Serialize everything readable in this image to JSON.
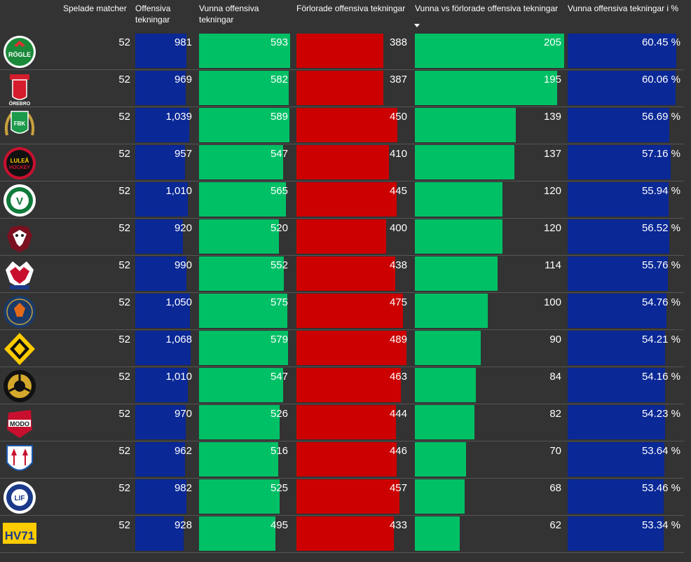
{
  "headers": {
    "games": "Spelade matcher",
    "faceoffs": "Offensiva tekningar",
    "won": "Vunna offensiva tekningar",
    "lost": "Förlorade offensiva tekningar",
    "diff": "Vunna vs förlorade offensiva tekningar",
    "pct": "Vunna offensiva tekningar i %"
  },
  "colors": {
    "background": "#333333",
    "blue": "#0a2896",
    "green": "#00c066",
    "red": "#cc0000",
    "text": "#ffffff"
  },
  "sorted_column": "diff",
  "chart_data": {
    "type": "table",
    "columns": [
      "Spelade matcher",
      "Offensiva tekningar",
      "Vunna offensiva tekningar",
      "Förlorade offensiva tekningar",
      "Vunna vs förlorade offensiva tekningar",
      "Vunna offensiva tekningar i %"
    ],
    "rows": [
      {
        "logo": "rogle-logo",
        "logo_text": "RÖGLE",
        "games": "52",
        "faceoffs": 981,
        "faceoffs_label": "981",
        "won": 593,
        "won_label": "593",
        "lost": 388,
        "lost_label": "388",
        "diff": 205,
        "diff_label": "205",
        "pct": 60.45,
        "pct_label": "60.45 %"
      },
      {
        "logo": "orebro-logo",
        "logo_text": "ÖREBRO",
        "games": "52",
        "faceoffs": 969,
        "faceoffs_label": "969",
        "won": 582,
        "won_label": "582",
        "lost": 387,
        "lost_label": "387",
        "diff": 195,
        "diff_label": "195",
        "pct": 60.06,
        "pct_label": "60.06 %"
      },
      {
        "logo": "farjestad-logo",
        "logo_text": "FBK",
        "games": "52",
        "faceoffs": 1039,
        "faceoffs_label": "1,039",
        "won": 589,
        "won_label": "589",
        "lost": 450,
        "lost_label": "450",
        "diff": 139,
        "diff_label": "139",
        "pct": 56.69,
        "pct_label": "56.69 %"
      },
      {
        "logo": "lulea-logo",
        "logo_text": "LULEÅ",
        "games": "52",
        "faceoffs": 957,
        "faceoffs_label": "957",
        "won": 547,
        "won_label": "547",
        "lost": 410,
        "lost_label": "410",
        "diff": 137,
        "diff_label": "137",
        "pct": 57.16,
        "pct_label": "57.16 %"
      },
      {
        "logo": "frolunda-logo",
        "logo_text": "V",
        "games": "52",
        "faceoffs": 1010,
        "faceoffs_label": "1,010",
        "won": 565,
        "won_label": "565",
        "lost": 445,
        "lost_label": "445",
        "diff": 120,
        "diff_label": "120",
        "pct": 55.94,
        "pct_label": "55.94 %"
      },
      {
        "logo": "malmo-logo",
        "logo_text": "",
        "games": "52",
        "faceoffs": 920,
        "faceoffs_label": "920",
        "won": 520,
        "won_label": "520",
        "lost": 400,
        "lost_label": "400",
        "diff": 120,
        "diff_label": "120",
        "pct": 56.52,
        "pct_label": "56.52 %"
      },
      {
        "logo": "linkoping-logo",
        "logo_text": "",
        "games": "52",
        "faceoffs": 990,
        "faceoffs_label": "990",
        "won": 552,
        "won_label": "552",
        "lost": 438,
        "lost_label": "438",
        "diff": 114,
        "diff_label": "114",
        "pct": 55.76,
        "pct_label": "55.76 %"
      },
      {
        "logo": "vaxjo-logo",
        "logo_text": "",
        "games": "52",
        "faceoffs": 1050,
        "faceoffs_label": "1,050",
        "won": 575,
        "won_label": "575",
        "lost": 475,
        "lost_label": "475",
        "diff": 100,
        "diff_label": "100",
        "pct": 54.76,
        "pct_label": "54.76 %"
      },
      {
        "logo": "skelleftea-logo",
        "logo_text": "",
        "games": "52",
        "faceoffs": 1068,
        "faceoffs_label": "1,068",
        "won": 579,
        "won_label": "579",
        "lost": 489,
        "lost_label": "489",
        "diff": 90,
        "diff_label": "90",
        "pct": 54.21,
        "pct_label": "54.21 %"
      },
      {
        "logo": "brynas-logo",
        "logo_text": "",
        "games": "52",
        "faceoffs": 1010,
        "faceoffs_label": "1,010",
        "won": 547,
        "won_label": "547",
        "lost": 463,
        "lost_label": "463",
        "diff": 84,
        "diff_label": "84",
        "pct": 54.16,
        "pct_label": "54.16 %"
      },
      {
        "logo": "modo-logo",
        "logo_text": "MODO",
        "games": "52",
        "faceoffs": 970,
        "faceoffs_label": "970",
        "won": 526,
        "won_label": "526",
        "lost": 444,
        "lost_label": "444",
        "diff": 82,
        "diff_label": "82",
        "pct": 54.23,
        "pct_label": "54.23 %"
      },
      {
        "logo": "timra-logo",
        "logo_text": "",
        "games": "52",
        "faceoffs": 962,
        "faceoffs_label": "962",
        "won": 516,
        "won_label": "516",
        "lost": 446,
        "lost_label": "446",
        "diff": 70,
        "diff_label": "70",
        "pct": 53.64,
        "pct_label": "53.64 %"
      },
      {
        "logo": "leksand-logo",
        "logo_text": "LIF",
        "games": "52",
        "faceoffs": 982,
        "faceoffs_label": "982",
        "won": 525,
        "won_label": "525",
        "lost": 457,
        "lost_label": "457",
        "diff": 68,
        "diff_label": "68",
        "pct": 53.46,
        "pct_label": "53.46 %"
      },
      {
        "logo": "hv71-logo",
        "logo_text": "HV71",
        "games": "52",
        "faceoffs": 928,
        "faceoffs_label": "928",
        "won": 495,
        "won_label": "495",
        "lost": 433,
        "lost_label": "433",
        "diff": 62,
        "diff_label": "62",
        "pct": 53.34,
        "pct_label": "53.34 %"
      }
    ]
  }
}
